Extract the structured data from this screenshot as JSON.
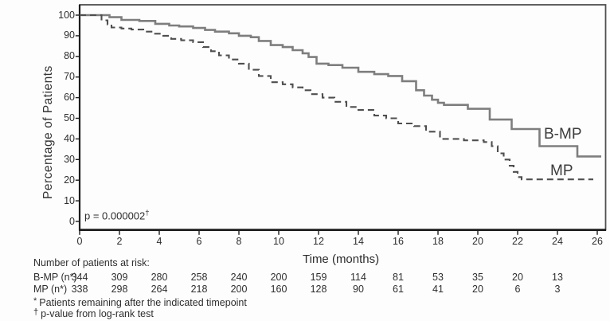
{
  "chart": {
    "y_axis_title": "Percentage of Patients",
    "x_axis_title": "Time (months)",
    "p_value_text": "p = 0.000002",
    "p_value_sup": "†",
    "curve_labels": {
      "bmp": "B-MP",
      "mp": "MP"
    }
  },
  "risk_table": {
    "header": "Number of patients at risk:",
    "rows": [
      {
        "label": "B-MP  (n*)",
        "values": [
          "344",
          "309",
          "280",
          "258",
          "240",
          "200",
          "159",
          "114",
          "81",
          "53",
          "35",
          "20",
          "13"
        ]
      },
      {
        "label": "MP (n*)",
        "values": [
          "338",
          "298",
          "264",
          "218",
          "200",
          "160",
          "128",
          "90",
          "61",
          "41",
          "20",
          "6",
          "3"
        ]
      }
    ],
    "footnotes": [
      {
        "marker": "*",
        "text": "Patients remaining after the indicated timepoint"
      },
      {
        "marker": "†",
        "text": "p-value from log-rank test"
      }
    ]
  },
  "chart_data": {
    "type": "line",
    "subtype": "kaplan-meier-step",
    "title": "",
    "xlabel": "Time (months)",
    "ylabel": "Percentage of Patients",
    "xlim": [
      0,
      26
    ],
    "ylim": [
      0,
      100
    ],
    "xticks": [
      0,
      2,
      4,
      6,
      8,
      10,
      12,
      14,
      16,
      18,
      20,
      22,
      24,
      26
    ],
    "yticks": [
      0,
      10,
      20,
      30,
      40,
      50,
      60,
      70,
      80,
      90,
      100
    ],
    "grid": false,
    "legend_position": "inline-right",
    "annotations": [
      {
        "text": "p = 0.000002†",
        "x": 0.5,
        "y": 2
      }
    ],
    "series": [
      {
        "name": "B-MP",
        "line_style": "solid",
        "color": "#7e7e7e",
        "points": [
          [
            0,
            100
          ],
          [
            1.3,
            100
          ],
          [
            1.5,
            99
          ],
          [
            2.1,
            97.7
          ],
          [
            3.0,
            97.2
          ],
          [
            3.8,
            95.8
          ],
          [
            4.5,
            95
          ],
          [
            5.0,
            94.5
          ],
          [
            5.7,
            93.8
          ],
          [
            6.3,
            92.8
          ],
          [
            6.8,
            92
          ],
          [
            7.5,
            91.2
          ],
          [
            8.0,
            90
          ],
          [
            8.6,
            89.3
          ],
          [
            9.0,
            87.5
          ],
          [
            9.6,
            85.5
          ],
          [
            10.2,
            84.5
          ],
          [
            10.7,
            83
          ],
          [
            11.2,
            81.5
          ],
          [
            11.5,
            79.7
          ],
          [
            11.9,
            76.5
          ],
          [
            12.5,
            75.8
          ],
          [
            13.2,
            74.5
          ],
          [
            14.0,
            72.5
          ],
          [
            14.8,
            71.4
          ],
          [
            15.5,
            70.5
          ],
          [
            16.2,
            68
          ],
          [
            16.9,
            63.6
          ],
          [
            17.3,
            61
          ],
          [
            17.7,
            59
          ],
          [
            18.0,
            57.5
          ],
          [
            18.3,
            56.5
          ],
          [
            19.5,
            54.6
          ],
          [
            20.6,
            49.4
          ],
          [
            21.7,
            44.8
          ],
          [
            23.1,
            36.5
          ],
          [
            25.0,
            31.5
          ],
          [
            26.2,
            31.5
          ]
        ]
      },
      {
        "name": "MP",
        "line_style": "dashed",
        "color": "#4f4f4f",
        "points": [
          [
            0,
            100
          ],
          [
            0.9,
            100
          ],
          [
            1.1,
            97.5
          ],
          [
            1.4,
            95.5
          ],
          [
            1.6,
            94
          ],
          [
            2.1,
            93.5
          ],
          [
            2.6,
            93
          ],
          [
            3.2,
            92
          ],
          [
            3.7,
            91
          ],
          [
            4.2,
            90
          ],
          [
            4.6,
            88.5
          ],
          [
            5.1,
            87.8
          ],
          [
            5.7,
            86.9
          ],
          [
            6.2,
            84.5
          ],
          [
            6.6,
            82.5
          ],
          [
            7.0,
            80.5
          ],
          [
            7.5,
            78.5
          ],
          [
            8.0,
            76.5
          ],
          [
            8.5,
            73.5
          ],
          [
            9.0,
            70.5
          ],
          [
            9.6,
            67.5
          ],
          [
            10.2,
            66.5
          ],
          [
            10.7,
            65
          ],
          [
            11.2,
            63.6
          ],
          [
            11.6,
            61.7
          ],
          [
            12.2,
            60
          ],
          [
            12.8,
            58
          ],
          [
            13.4,
            55.5
          ],
          [
            14.0,
            54
          ],
          [
            14.8,
            51.3
          ],
          [
            15.4,
            50
          ],
          [
            16.0,
            47.5
          ],
          [
            16.8,
            46.2
          ],
          [
            17.4,
            43.5
          ],
          [
            18.1,
            40
          ],
          [
            19.3,
            39.3
          ],
          [
            20.3,
            38.5
          ],
          [
            20.7,
            36.5
          ],
          [
            21.0,
            33
          ],
          [
            21.3,
            30
          ],
          [
            21.6,
            27
          ],
          [
            21.8,
            24
          ],
          [
            22.0,
            21.5
          ],
          [
            22.2,
            20.4
          ],
          [
            25.8,
            20.4
          ]
        ]
      }
    ],
    "at_risk_months": [
      0,
      2,
      4,
      6,
      8,
      10,
      12,
      14,
      16,
      18,
      20,
      22,
      24
    ],
    "at_risk": {
      "B-MP": [
        344,
        309,
        280,
        258,
        240,
        200,
        159,
        114,
        81,
        53,
        35,
        20,
        13
      ],
      "MP": [
        338,
        298,
        264,
        218,
        200,
        160,
        128,
        90,
        61,
        41,
        20,
        6,
        3
      ]
    }
  }
}
